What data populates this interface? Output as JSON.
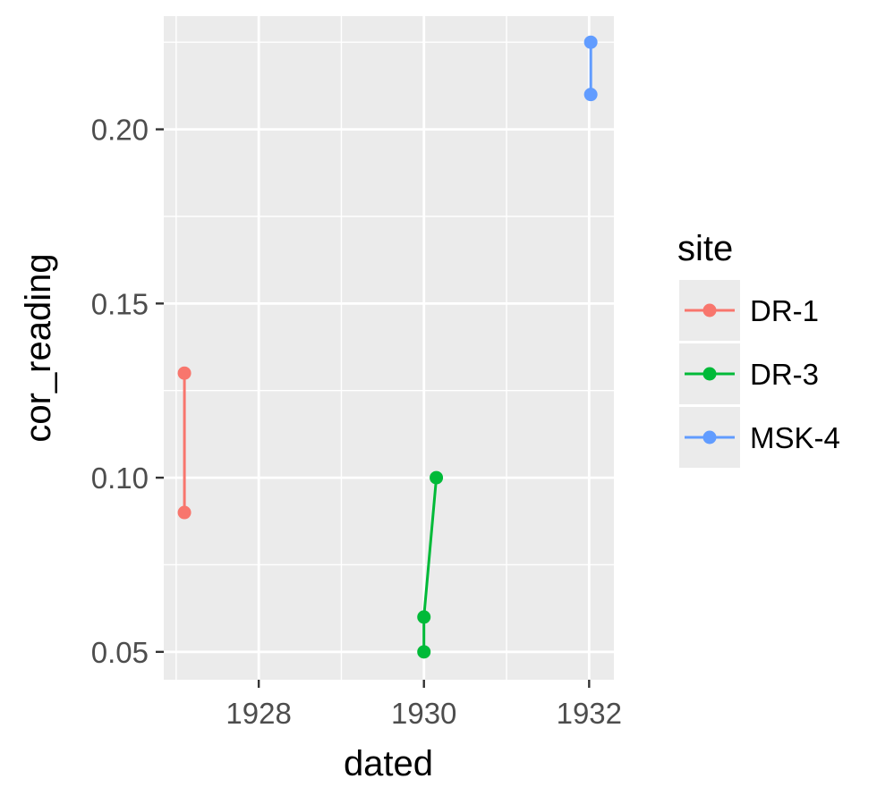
{
  "chart_data": {
    "type": "line",
    "xlabel": "dated",
    "ylabel": "cor_reading",
    "x_ticks": [
      1928,
      1930,
      1932
    ],
    "x_tick_labels": [
      "1928",
      "1930",
      "1932"
    ],
    "y_ticks": [
      0.05,
      0.1,
      0.15,
      0.2
    ],
    "y_tick_labels": [
      "0.05",
      "0.10",
      "0.15",
      "0.20"
    ],
    "xlim": [
      1926.85,
      1932.3
    ],
    "ylim": [
      0.042,
      0.2325
    ],
    "grid": true,
    "legend": {
      "title": "site",
      "placement": "right"
    },
    "series": [
      {
        "name": "DR-1",
        "color": "#F8766D",
        "points": [
          {
            "x": 1927.1,
            "y": 0.13
          },
          {
            "x": 1927.1,
            "y": 0.09
          }
        ]
      },
      {
        "name": "DR-3",
        "color": "#00BA38",
        "points": [
          {
            "x": 1930.0,
            "y": 0.05
          },
          {
            "x": 1930.0,
            "y": 0.06
          },
          {
            "x": 1930.15,
            "y": 0.1
          }
        ]
      },
      {
        "name": "MSK-4",
        "color": "#619CFF",
        "points": [
          {
            "x": 1932.02,
            "y": 0.225
          },
          {
            "x": 1932.02,
            "y": 0.21
          }
        ]
      }
    ]
  }
}
